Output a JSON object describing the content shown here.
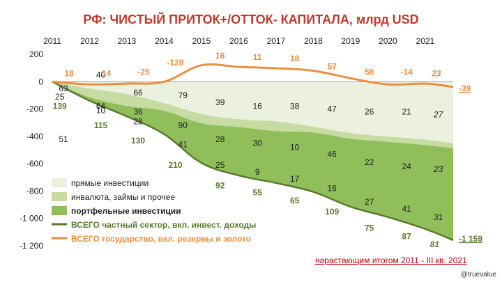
{
  "title": "РФ: ЧИСТЫЙ ПРИТОК+/ОТТОК- КАПИТАЛА, млрд USD",
  "footnote": "нарастающим итогом 2011 - III кв. 2021",
  "credit": "@truevalue",
  "colors": {
    "fdi": "#ecf0de",
    "other": "#c6dca2",
    "portfolio": "#8fbe5a",
    "private_line": "#5a7a2c",
    "gov_line": "#ee8d3c",
    "title": "#c0392b"
  },
  "chart_data": {
    "type": "area",
    "xlabel": "",
    "ylabel": "",
    "ylim": [
      -1200,
      200
    ],
    "yticks": [
      -1200,
      -1000,
      -800,
      -600,
      -400,
      -200,
      0,
      200
    ],
    "ytick_labels": [
      "-1 200",
      "-1 000",
      "-800",
      "-600",
      "-400",
      "-200",
      "0",
      "200"
    ],
    "x_categories": [
      "2011",
      "2012",
      "2013",
      "2014",
      "2015",
      "2016",
      "2017",
      "2018",
      "2019",
      "2020",
      "2021"
    ],
    "x": [
      2011,
      2012,
      2013,
      2014,
      2015,
      2016,
      2017,
      2018,
      2019,
      2020,
      2021,
      2021.75
    ],
    "series": [
      {
        "name": "прямые инвестиции",
        "kind": "area",
        "values": [
          0,
          -51,
          -91,
          -157,
          -236,
          -275,
          -291,
          -329,
          -376,
          -402,
          -423,
          -450
        ]
      },
      {
        "name": "инвалюта, займы и прочее",
        "kind": "area",
        "values": [
          0,
          -114,
          -178,
          -214,
          -304,
          -332,
          -362,
          -372,
          -418,
          -440,
          -464,
          -487
        ]
      },
      {
        "name": "портфельные инвестиции",
        "kind": "area",
        "values": [
          0,
          -139,
          -254,
          -384,
          -594,
          -686,
          -741,
          -806,
          -915,
          -990,
          -1077,
          -1159
        ]
      },
      {
        "name": "ВСЕГО частный сектор, вкл. инвест. доходы",
        "kind": "line",
        "values": [
          0,
          -139,
          -254,
          -384,
          -594,
          -686,
          -741,
          -806,
          -915,
          -990,
          -1077,
          -1159
        ]
      },
      {
        "name": "ВСЕГО государство, вкл. резервы и золото",
        "kind": "line",
        "values": [
          0,
          -20,
          -14,
          0,
          120,
          108,
          98,
          80,
          25,
          -20,
          -14,
          -39
        ]
      }
    ],
    "annotations": {
      "fdi": [
        {
          "x": 2011.3,
          "y": -42,
          "text": "51"
        },
        {
          "x": 2012.3,
          "y": 5,
          "text": "40"
        },
        {
          "x": 2013.3,
          "y": -8,
          "text": "66"
        },
        {
          "x": 2014.5,
          "y": -10,
          "text": "79"
        },
        {
          "x": 2015.5,
          "y": -15,
          "text": "39"
        },
        {
          "x": 2016.5,
          "y": -18,
          "text": "16"
        },
        {
          "x": 2017.5,
          "y": -18,
          "text": "38"
        },
        {
          "x": 2018.5,
          "y": -20,
          "text": "47"
        },
        {
          "x": 2019.5,
          "y": -22,
          "text": "26"
        },
        {
          "x": 2020.5,
          "y": -22,
          "text": "21"
        },
        {
          "x": 2021.35,
          "y": -24,
          "text": "27",
          "italic": true
        }
      ],
      "other": [
        {
          "x": 2011.3,
          "y": -5,
          "text": "63"
        },
        {
          "x": 2012.3,
          "y": -18,
          "text": "64"
        },
        {
          "x": 2013.3,
          "y": -22,
          "text": "36"
        },
        {
          "x": 2014.5,
          "y": -32,
          "text": "90"
        },
        {
          "x": 2015.5,
          "y": -42,
          "text": "28"
        },
        {
          "x": 2016.5,
          "y": -45,
          "text": "30"
        },
        {
          "x": 2017.5,
          "y": -48,
          "text": "10"
        },
        {
          "x": 2018.5,
          "y": -53,
          "text": "46"
        },
        {
          "x": 2019.5,
          "y": -59,
          "text": "22"
        },
        {
          "x": 2020.5,
          "y": -62,
          "text": "24"
        },
        {
          "x": 2021.35,
          "y": -64,
          "text": "23",
          "italic": true
        }
      ],
      "portfolio": [
        {
          "x": 2011.2,
          "y": -11,
          "text": "25"
        },
        {
          "x": 2012.3,
          "y": -21,
          "text": "10"
        },
        {
          "x": 2013.3,
          "y": -29,
          "text": "28"
        },
        {
          "x": 2014.5,
          "y": -46,
          "text": "41"
        },
        {
          "x": 2015.5,
          "y": -61,
          "text": "25"
        },
        {
          "x": 2016.5,
          "y": -66,
          "text": "9"
        },
        {
          "x": 2017.5,
          "y": -71,
          "text": "17"
        },
        {
          "x": 2018.5,
          "y": -78,
          "text": "16"
        },
        {
          "x": 2019.5,
          "y": -88,
          "text": "27"
        },
        {
          "x": 2020.5,
          "y": -93,
          "text": "41"
        },
        {
          "x": 2021.35,
          "y": -99,
          "text": "31",
          "italic": true
        }
      ],
      "private_total": [
        {
          "x": 2011.2,
          "y": -18,
          "text": "139"
        },
        {
          "x": 2012.3,
          "y": -32,
          "text": "115"
        },
        {
          "x": 2013.3,
          "y": -43,
          "text": "130"
        },
        {
          "x": 2014.3,
          "y": -61,
          "text": "210"
        },
        {
          "x": 2015.5,
          "y": -76,
          "text": "92"
        },
        {
          "x": 2016.5,
          "y": -81,
          "text": "55"
        },
        {
          "x": 2017.5,
          "y": -87,
          "text": "65"
        },
        {
          "x": 2018.5,
          "y": -95,
          "text": "109"
        },
        {
          "x": 2019.5,
          "y": -107,
          "text": "75"
        },
        {
          "x": 2020.5,
          "y": -113,
          "text": "87"
        },
        {
          "x": 2021.25,
          "y": -119,
          "text": "81",
          "italic": true
        }
      ],
      "gov_total": [
        {
          "x": 2011.45,
          "y": 6,
          "text": "18"
        },
        {
          "x": 2012.45,
          "y": 6,
          "text": "14"
        },
        {
          "x": 2013.45,
          "y": 7,
          "text": "-25"
        },
        {
          "x": 2014.3,
          "y": 14,
          "text": "-128"
        },
        {
          "x": 2015.5,
          "y": 19,
          "text": "16"
        },
        {
          "x": 2016.5,
          "y": 18,
          "text": "11"
        },
        {
          "x": 2017.5,
          "y": 17,
          "text": "18"
        },
        {
          "x": 2018.5,
          "y": 11,
          "text": "57"
        },
        {
          "x": 2019.5,
          "y": 7,
          "text": "50"
        },
        {
          "x": 2020.5,
          "y": 7,
          "text": "-14"
        },
        {
          "x": 2021.3,
          "y": 6,
          "text": "23",
          "italic": true
        }
      ],
      "end_labels": [
        {
          "series": "gov",
          "text": "-39"
        },
        {
          "series": "private",
          "text": "-1 159"
        }
      ]
    },
    "legend": {
      "placement": "bottom-left",
      "items": [
        {
          "label": "прямые инвестиции",
          "kind": "patch",
          "color_key": "fdi"
        },
        {
          "label": "инвалюта, займы и прочее",
          "kind": "patch",
          "color_key": "other"
        },
        {
          "label": "портфельные инвестиции",
          "kind": "patch",
          "color_key": "portfolio"
        },
        {
          "label": "ВСЕГО частный сектор, вкл. инвест. доходы",
          "kind": "line",
          "color_key": "private_line"
        },
        {
          "label": "ВСЕГО государство, вкл. резервы и золото",
          "kind": "line",
          "color_key": "gov_line"
        }
      ]
    },
    "grid": false
  }
}
